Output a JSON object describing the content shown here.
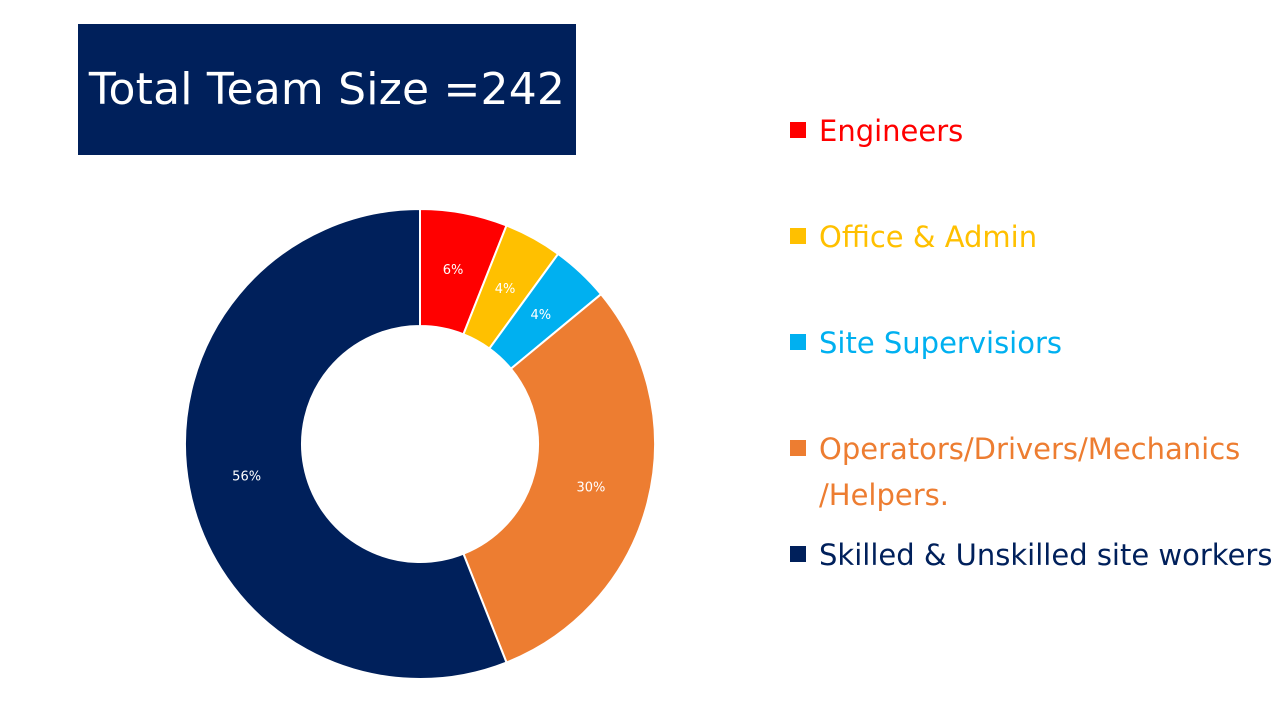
{
  "slide": {
    "title": "Total Team Size =242"
  },
  "colors": {
    "title_bg": "#00205b",
    "title_text": "#ffffff",
    "slice_border": "#ffffff",
    "data_label": "#ffffff"
  },
  "chart_data": {
    "type": "pie",
    "variant": "donut",
    "title": "",
    "categories": [
      "Engineers",
      "Office & Admin",
      "Site Supervisiors",
      "Operators/Drivers/Mechanics /Helpers.",
      "Skilled & Unskilled site workers"
    ],
    "values": [
      6,
      4,
      4,
      30,
      56
    ],
    "labels": [
      "6%",
      "4%",
      "4%",
      "30%",
      "56%"
    ],
    "colors": [
      "#ff0000",
      "#ffc000",
      "#00b0f0",
      "#ed7d31",
      "#00205b"
    ],
    "legend_position": "right"
  }
}
